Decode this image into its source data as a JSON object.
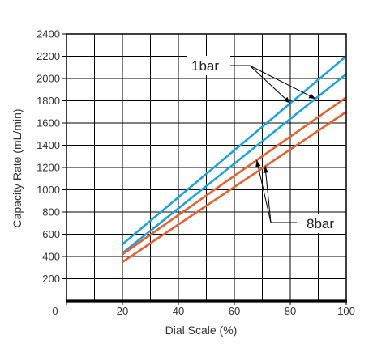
{
  "chart_data": {
    "type": "line",
    "title": "",
    "xlabel": "Dial Scale (%)",
    "ylabel": "Capacity Rate (mL/min)",
    "xlim": [
      0,
      100
    ],
    "ylim": [
      0,
      2400
    ],
    "x_ticks": [
      0,
      20,
      40,
      60,
      80,
      100
    ],
    "y_ticks": [
      200,
      400,
      600,
      800,
      1000,
      1200,
      1400,
      1600,
      1800,
      2000,
      2200,
      2400
    ],
    "grid": true,
    "colors": {
      "blue": "#1AA3E0",
      "orange": "#E8612C",
      "grid": "#000000"
    },
    "series": [
      {
        "color": "blue",
        "x": [
          20,
          100
        ],
        "y": [
          510,
          2200
        ]
      },
      {
        "color": "blue",
        "x": [
          20,
          100
        ],
        "y": [
          430,
          2040
        ]
      },
      {
        "color": "orange",
        "x": [
          20,
          100
        ],
        "y": [
          420,
          1830
        ]
      },
      {
        "color": "orange",
        "x": [
          20,
          100
        ],
        "y": [
          350,
          1700
        ]
      }
    ],
    "annotations": [
      {
        "text": "1bar",
        "points_to_x": [
          80,
          89
        ]
      },
      {
        "text": "8bar",
        "points_to_x": [
          68,
          71
        ]
      }
    ]
  }
}
